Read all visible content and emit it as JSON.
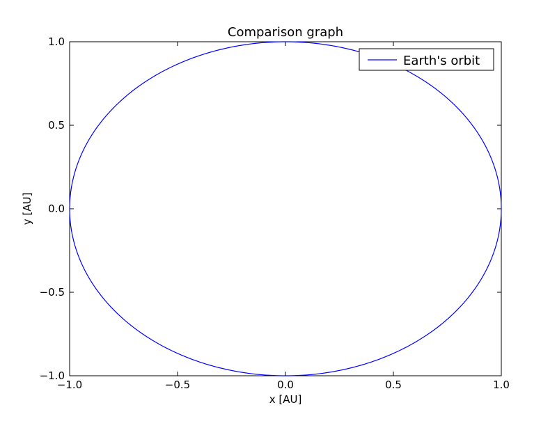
{
  "chart_data": {
    "type": "line",
    "title": "Comparison graph",
    "xlabel": "x [AU]",
    "ylabel": "y [AU]",
    "xlim": [
      -1.0,
      1.0
    ],
    "ylim": [
      -1.0,
      1.0
    ],
    "xticks": [
      -1.0,
      -0.5,
      0.0,
      0.5,
      1.0
    ],
    "yticks": [
      -1.0,
      -0.5,
      0.0,
      0.5,
      1.0
    ],
    "xtick_labels": [
      "−1.0",
      "−0.5",
      "0.0",
      "0.5",
      "1.0"
    ],
    "ytick_labels": [
      "−1.0",
      "−0.5",
      "0.0",
      "0.5",
      "1.0"
    ],
    "grid": false,
    "legend_position": "top-right",
    "series": [
      {
        "name": "Earth's orbit",
        "color": "#0000ff",
        "parametric": "circle",
        "center": [
          0.0,
          0.0
        ],
        "radius": 1.0,
        "x": [
          1.0,
          0.7071,
          0.0,
          -0.7071,
          -1.0,
          -0.7071,
          0.0,
          0.7071,
          1.0
        ],
        "y": [
          0.0,
          0.7071,
          1.0,
          0.7071,
          0.0,
          -0.7071,
          -1.0,
          -0.7071,
          0.0
        ]
      }
    ]
  }
}
